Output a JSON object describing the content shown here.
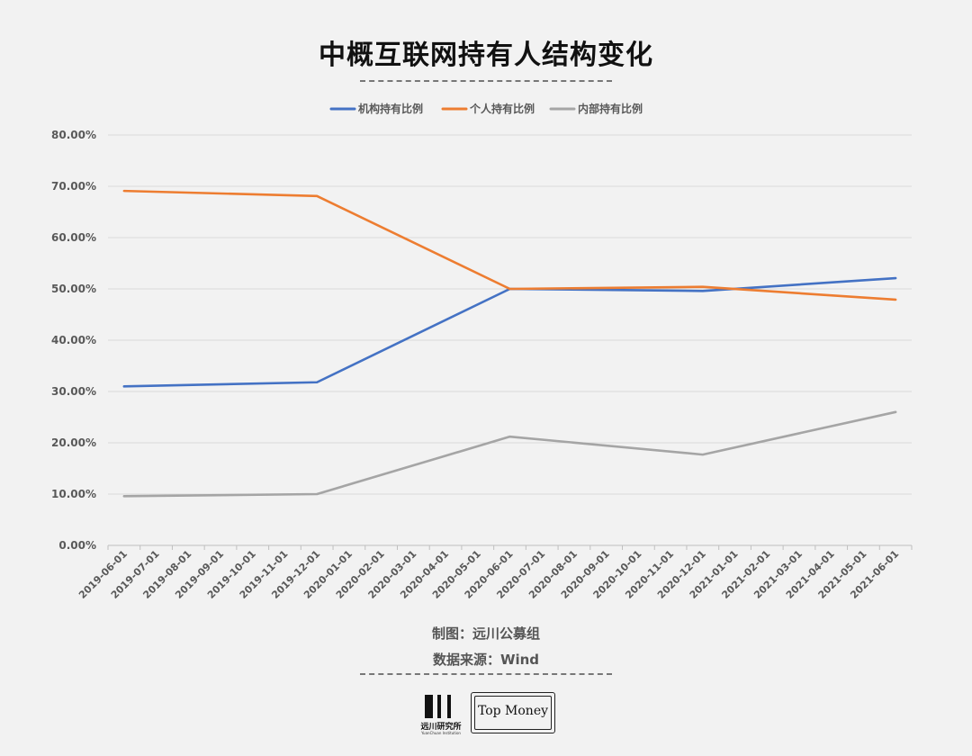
{
  "title": "中概互联网持有人结构变化",
  "footer": {
    "credit": "制图：远川公募组",
    "source": "数据来源：Wind"
  },
  "logos": {
    "left_cn": "远川研究所",
    "left_en": "YuanChuan Institution",
    "right_text": "Top Money"
  },
  "chart_data": {
    "type": "line",
    "categories": [
      "2019-06-01",
      "2019-07-01",
      "2019-08-01",
      "2019-09-01",
      "2019-10-01",
      "2019-11-01",
      "2019-12-01",
      "2020-01-01",
      "2020-02-01",
      "2020-03-01",
      "2020-04-01",
      "2020-05-01",
      "2020-06-01",
      "2020-07-01",
      "2020-08-01",
      "2020-09-01",
      "2020-10-01",
      "2020-11-01",
      "2020-12-01",
      "2021-01-01",
      "2021-02-01",
      "2021-03-01",
      "2021-04-01",
      "2021-05-01",
      "2021-06-01"
    ],
    "series": [
      {
        "name": "机构持有比例",
        "color": "#4472c4",
        "x": [
          "2019-06-01",
          "2019-12-01",
          "2020-06-01",
          "2020-12-01",
          "2021-06-01"
        ],
        "values": [
          31.0,
          31.8,
          50.0,
          49.6,
          52.1
        ]
      },
      {
        "name": "个人持有比例",
        "color": "#ed7d31",
        "x": [
          "2019-06-01",
          "2019-12-01",
          "2020-06-01",
          "2020-12-01",
          "2021-06-01"
        ],
        "values": [
          69.1,
          68.1,
          50.0,
          50.4,
          47.9
        ]
      },
      {
        "name": "内部持有比例",
        "color": "#a5a5a5",
        "x": [
          "2019-06-01",
          "2019-12-01",
          "2020-06-01",
          "2020-12-01",
          "2021-06-01"
        ],
        "values": [
          9.6,
          10.0,
          21.2,
          17.7,
          26.0
        ]
      }
    ],
    "yticks": [
      "0.00%",
      "10.00%",
      "20.00%",
      "30.00%",
      "40.00%",
      "50.00%",
      "60.00%",
      "70.00%",
      "80.00%"
    ],
    "ylim": [
      0,
      80
    ],
    "grid": true,
    "legend": "top-center"
  }
}
